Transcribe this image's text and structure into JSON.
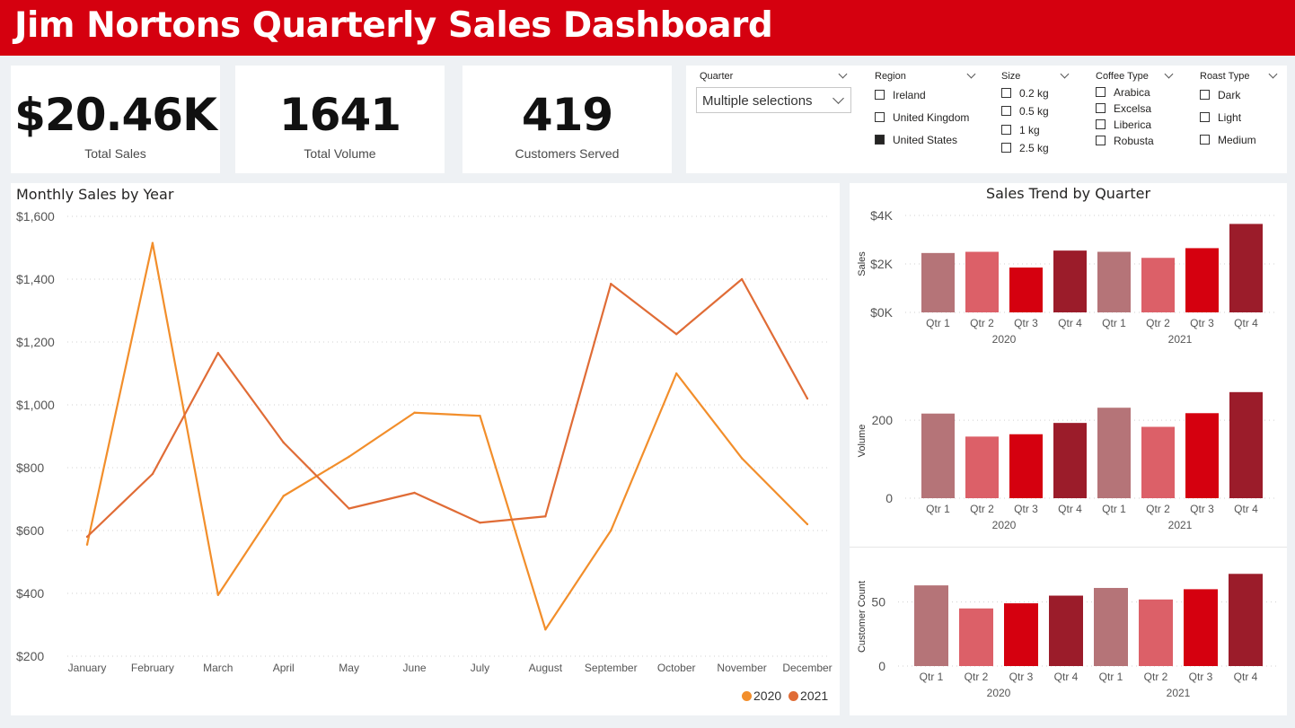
{
  "header": {
    "title": "Jim Nortons Quarterly Sales Dashboard"
  },
  "kpis": [
    {
      "value": "$20.46K",
      "label": "Total Sales"
    },
    {
      "value": "1641",
      "label": "Total Volume"
    },
    {
      "value": "419",
      "label": "Customers Served"
    }
  ],
  "filters": {
    "quarter": {
      "label": "Quarter",
      "value": "Multiple selections"
    },
    "region": {
      "label": "Region",
      "options": [
        {
          "label": "Ireland",
          "checked": false
        },
        {
          "label": "United Kingdom",
          "checked": false
        },
        {
          "label": "United States",
          "checked": true
        }
      ]
    },
    "size": {
      "label": "Size",
      "options": [
        {
          "label": "0.2 kg",
          "checked": false
        },
        {
          "label": "0.5 kg",
          "checked": false
        },
        {
          "label": "1 kg",
          "checked": false
        },
        {
          "label": "2.5 kg",
          "checked": false
        }
      ]
    },
    "coffee_type": {
      "label": "Coffee Type",
      "options": [
        {
          "label": "Arabica",
          "checked": false
        },
        {
          "label": "Excelsa",
          "checked": false
        },
        {
          "label": "Liberica",
          "checked": false
        },
        {
          "label": "Robusta",
          "checked": false
        }
      ]
    },
    "roast_type": {
      "label": "Roast Type",
      "options": [
        {
          "label": "Dark",
          "checked": false
        },
        {
          "label": "Light",
          "checked": false
        },
        {
          "label": "Medium",
          "checked": false
        }
      ]
    }
  },
  "colors": {
    "header": "#d5000f",
    "line_2020": "#f28e2b",
    "line_2021": "#e06c36",
    "qtr1": "#b57478",
    "qtr2": "#dc6068",
    "qtr3": "#d5000f",
    "qtr4": "#9b1c2a"
  },
  "chart_data": [
    {
      "type": "line",
      "title": "Monthly Sales by Year",
      "x": [
        "January",
        "February",
        "March",
        "April",
        "May",
        "June",
        "July",
        "August",
        "September",
        "October",
        "November",
        "December"
      ],
      "y_ticks": [
        "$200",
        "$400",
        "$600",
        "$800",
        "$1,000",
        "$1,200",
        "$1,400",
        "$1,600"
      ],
      "ylim": [
        200,
        1600
      ],
      "grid": true,
      "legend": "bottom-right",
      "series": [
        {
          "name": "2020",
          "color": "#f28e2b",
          "values": [
            555,
            1515,
            395,
            710,
            835,
            975,
            965,
            285,
            600,
            1100,
            830,
            620
          ]
        },
        {
          "name": "2021",
          "color": "#e06c36",
          "values": [
            580,
            780,
            1165,
            880,
            670,
            720,
            625,
            645,
            1385,
            1225,
            1400,
            1020
          ]
        }
      ]
    },
    {
      "type": "bar",
      "title": "Sales Trend by Quarter",
      "ylabel": "Sales",
      "y_ticks": [
        "$0K",
        "$2K",
        "$4K"
      ],
      "ylim": [
        0,
        4000
      ],
      "categories": [
        "Qtr 1",
        "Qtr 2",
        "Qtr 3",
        "Qtr 4",
        "Qtr 1",
        "Qtr 2",
        "Qtr 3",
        "Qtr 4"
      ],
      "groups": [
        "2020",
        "2021"
      ],
      "values": [
        2450,
        2500,
        1850,
        2550,
        2500,
        2250,
        2650,
        3650
      ]
    },
    {
      "type": "bar",
      "ylabel": "Volume",
      "y_ticks": [
        "0",
        "200"
      ],
      "ylim": [
        0,
        290
      ],
      "categories": [
        "Qtr 1",
        "Qtr 2",
        "Qtr 3",
        "Qtr 4",
        "Qtr 1",
        "Qtr 2",
        "Qtr 3",
        "Qtr 4"
      ],
      "groups": [
        "2020",
        "2021"
      ],
      "values": [
        217,
        158,
        164,
        193,
        232,
        183,
        218,
        272
      ]
    },
    {
      "type": "bar",
      "ylabel": "Customer Count",
      "y_ticks": [
        "0",
        "50"
      ],
      "ylim": [
        0,
        75
      ],
      "categories": [
        "Qtr 1",
        "Qtr 2",
        "Qtr 3",
        "Qtr 4",
        "Qtr 1",
        "Qtr 2",
        "Qtr 3",
        "Qtr 4"
      ],
      "groups": [
        "2020",
        "2021"
      ],
      "values": [
        63,
        45,
        49,
        55,
        61,
        52,
        60,
        72
      ]
    }
  ]
}
